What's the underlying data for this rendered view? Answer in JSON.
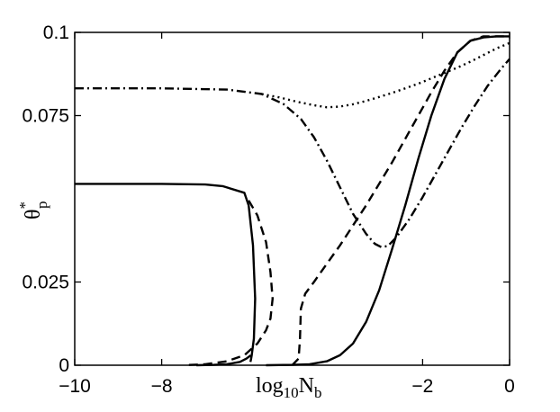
{
  "chart_data": {
    "type": "line",
    "title": "",
    "xlabel": {
      "base": "log",
      "sub": "10",
      "main": "N",
      "main_sub": "b"
    },
    "ylabel": {
      "main": "θ",
      "sup": "*",
      "sub": "p"
    },
    "xlim": [
      -10,
      0
    ],
    "ylim": [
      0,
      0.1
    ],
    "xticks": [
      {
        "value": -10,
        "label": "−10"
      },
      {
        "value": -8,
        "label": "−8"
      },
      {
        "value": -2,
        "label": "−2"
      },
      {
        "value": 0,
        "label": "0"
      }
    ],
    "yticks": [
      {
        "value": 0,
        "label": "0"
      },
      {
        "value": 0.025,
        "label": "0.025"
      },
      {
        "value": 0.075,
        "label": "0.075"
      },
      {
        "value": 0.1,
        "label": "0.1"
      }
    ],
    "grid": false,
    "legend": "none",
    "series": [
      {
        "style": "solid",
        "x": [
          -10,
          -8,
          -7,
          -6.6,
          -6.1,
          -6.0,
          -5.9,
          -5.85,
          -5.88,
          -5.93,
          -5.95,
          -5.96
        ],
        "y": [
          0.0545,
          0.0545,
          0.0543,
          0.0538,
          0.0518,
          0.048,
          0.036,
          0.02,
          0.008,
          0.003,
          0.0015,
          0.001
        ]
      },
      {
        "style": "solid",
        "x": [
          -7.2,
          -6.8,
          -6.5,
          -6.2,
          -6.05,
          -5.95
        ],
        "y": [
          0.0,
          0.0001,
          0.0003,
          0.001,
          0.002,
          0.003
        ]
      },
      {
        "style": "solid",
        "x": [
          -5.6,
          -5.0,
          -4.6,
          -4.2,
          -3.9,
          -3.6,
          -3.3,
          -3.0,
          -2.7,
          -2.4,
          -2.1,
          -1.8,
          -1.5,
          -1.2,
          -0.9,
          -0.6,
          -0.3,
          0
        ],
        "y": [
          0.0,
          0.0001,
          0.0003,
          0.0012,
          0.003,
          0.0065,
          0.013,
          0.0225,
          0.035,
          0.048,
          0.062,
          0.075,
          0.086,
          0.094,
          0.0975,
          0.0985,
          0.0988,
          0.0988
        ]
      },
      {
        "style": "dashed",
        "x": [
          -6.0,
          -5.8,
          -5.6,
          -5.5,
          -5.45,
          -5.5,
          -5.6,
          -5.8,
          -6.1,
          -6.5,
          -7.0,
          -7.5
        ],
        "y": [
          0.0495,
          0.045,
          0.037,
          0.028,
          0.02,
          0.014,
          0.0105,
          0.0065,
          0.003,
          0.0012,
          0.0003,
          0.0
        ]
      },
      {
        "style": "dashed",
        "x": [
          -5.0,
          -4.85,
          -4.82,
          -4.8,
          -4.7,
          -4.5,
          -4.2,
          -3.9,
          -3.6,
          -3.3,
          -3.0,
          -2.7,
          -2.4,
          -2.1,
          -1.8,
          -1.5,
          -1.2,
          -0.9,
          -0.6,
          -0.3,
          0
        ],
        "y": [
          0.0,
          0.002,
          0.008,
          0.017,
          0.0215,
          0.025,
          0.0305,
          0.036,
          0.042,
          0.048,
          0.0545,
          0.061,
          0.068,
          0.075,
          0.082,
          0.0885,
          0.094,
          0.0975,
          0.0988,
          0.0988,
          0.0988
        ]
      },
      {
        "style": "dashdot",
        "x": [
          -10,
          -8,
          -6.5,
          -5.7,
          -5.2,
          -4.8,
          -4.5,
          -4.2,
          -3.9,
          -3.6,
          -3.3,
          -3.1,
          -2.95,
          -2.8,
          -2.6,
          -2.3,
          -2.0,
          -1.7,
          -1.4,
          -1.1,
          -0.8,
          -0.5,
          -0.2,
          0
        ],
        "y": [
          0.0832,
          0.0832,
          0.0828,
          0.0815,
          0.0785,
          0.074,
          0.0685,
          0.0615,
          0.0535,
          0.0455,
          0.0395,
          0.0365,
          0.0355,
          0.0358,
          0.0385,
          0.044,
          0.0505,
          0.0575,
          0.0645,
          0.0715,
          0.078,
          0.084,
          0.089,
          0.092
        ]
      },
      {
        "style": "dotted",
        "x": [
          -5.7,
          -5.3,
          -4.9,
          -4.5,
          -4.2,
          -3.9,
          -3.6,
          -3.3,
          -3.0,
          -2.7,
          -2.4,
          -2.1,
          -1.8,
          -1.5,
          -1.2,
          -0.9,
          -0.6,
          -0.3,
          0
        ],
        "y": [
          0.0815,
          0.0805,
          0.0792,
          0.0781,
          0.0775,
          0.0777,
          0.0784,
          0.0794,
          0.0806,
          0.0818,
          0.0832,
          0.0846,
          0.0862,
          0.0878,
          0.0894,
          0.0912,
          0.0932,
          0.0952,
          0.0968
        ]
      }
    ]
  }
}
